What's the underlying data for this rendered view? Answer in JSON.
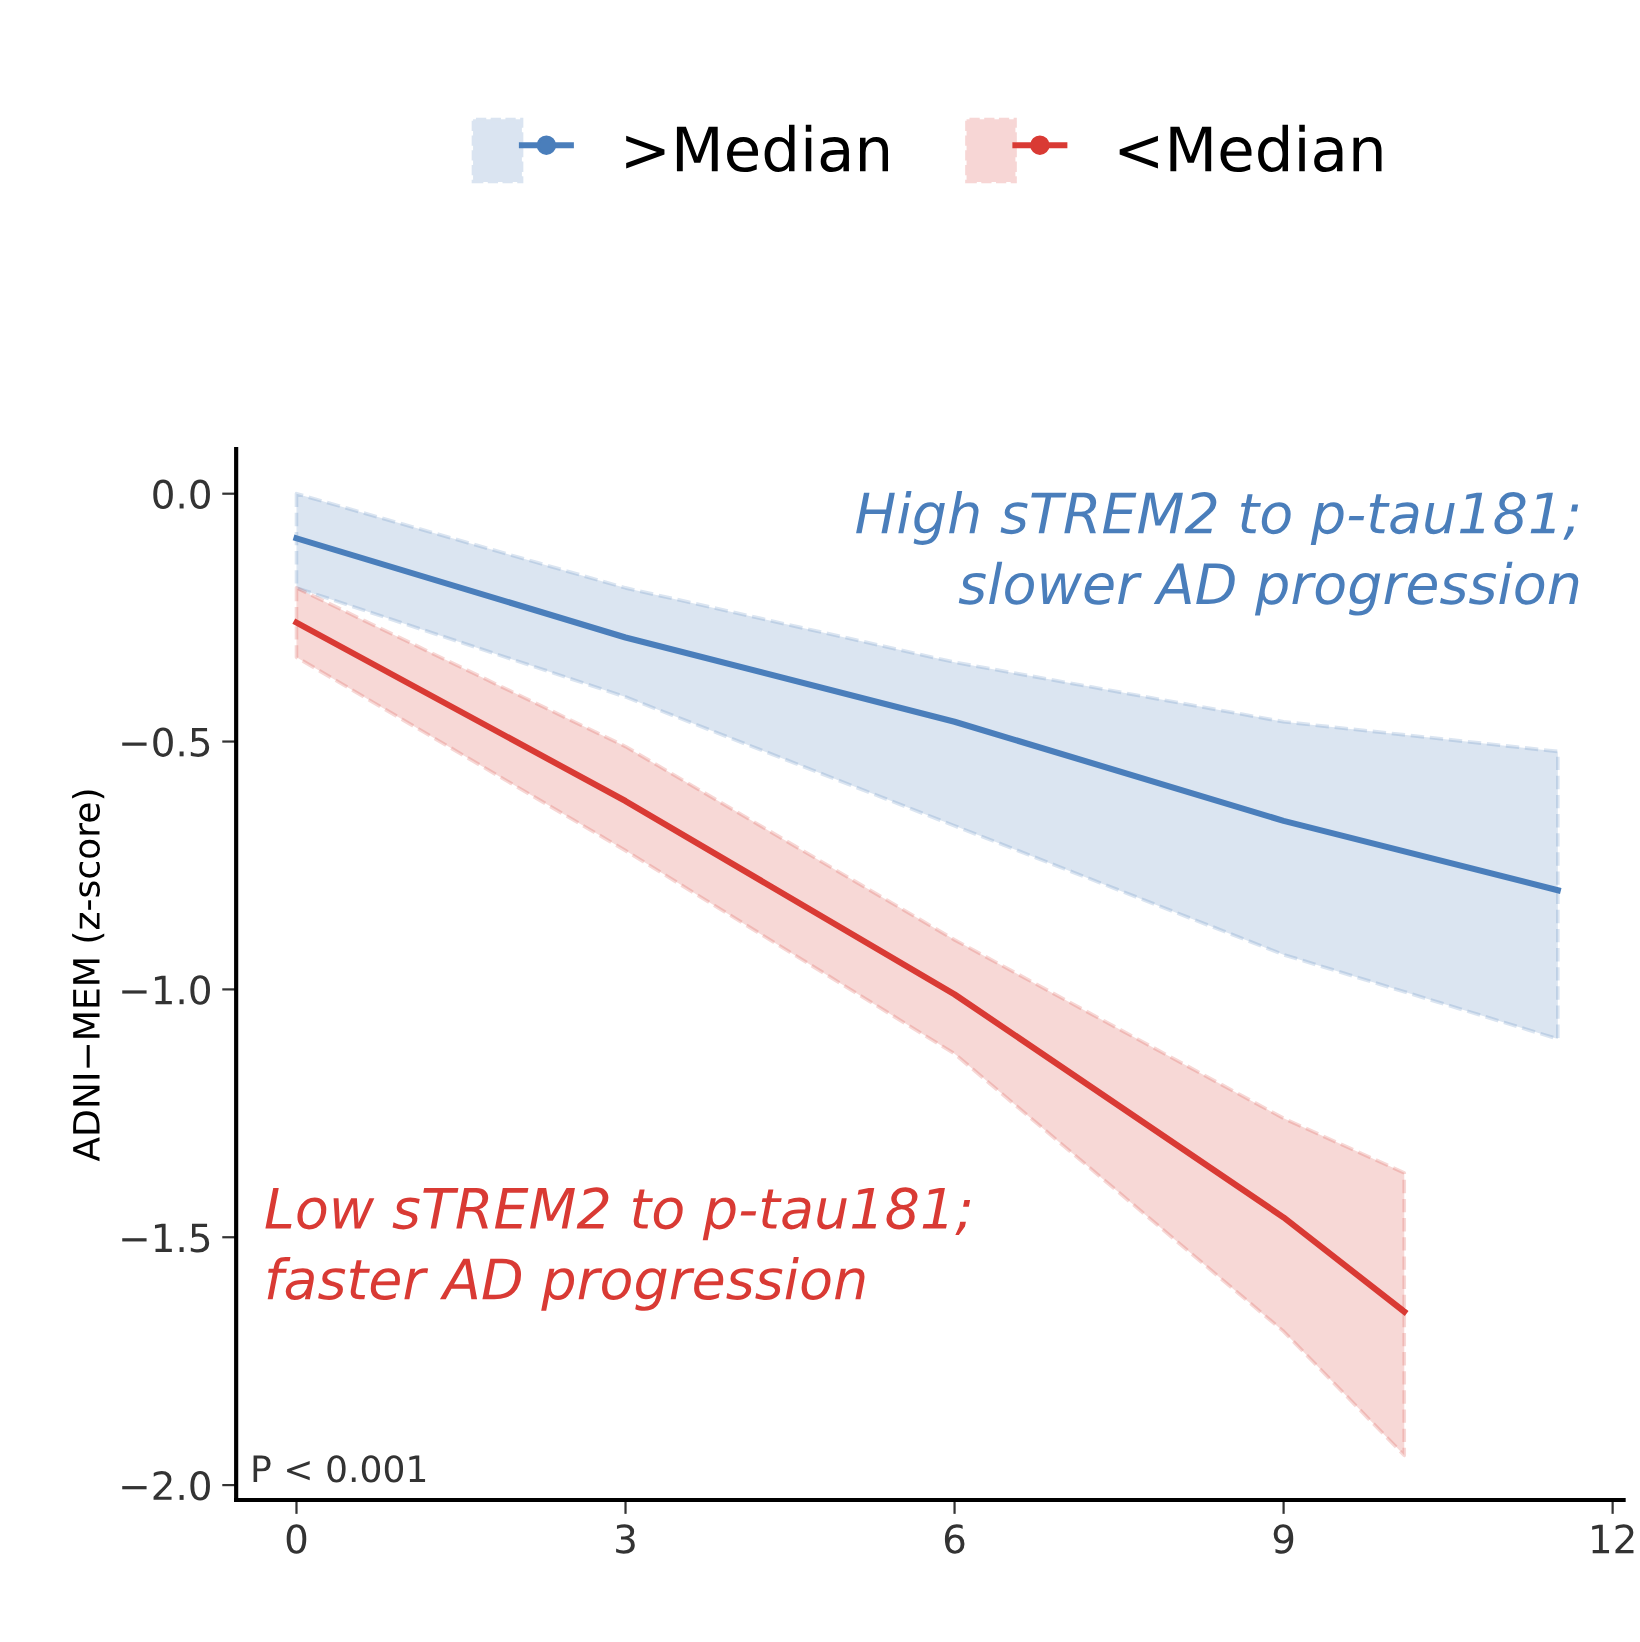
{
  "chart_data": {
    "type": "line",
    "ylabel": "ADNI−MEM (z-score)",
    "xlim": [
      -0.55,
      12.1
    ],
    "ylim": [
      -2.03,
      0.09
    ],
    "xticks": [
      0,
      3,
      6,
      9,
      12
    ],
    "yticks": [
      {
        "value": 0.0,
        "label": "0.0"
      },
      {
        "value": -0.5,
        "label": "−0.5"
      },
      {
        "value": -1.0,
        "label": "−1.0"
      },
      {
        "value": -1.5,
        "label": "−1.5"
      },
      {
        "value": -2.0,
        "label": "−2.0"
      }
    ],
    "series": [
      {
        "name": ">Median",
        "color": "#4a7ebb",
        "x": [
          0,
          3,
          6,
          9,
          11.5
        ],
        "values": [
          -0.09,
          -0.29,
          -0.46,
          -0.66,
          -0.8
        ],
        "lower": [
          -0.19,
          -0.41,
          -0.67,
          -0.93,
          -1.1
        ],
        "upper": [
          0.0,
          -0.19,
          -0.34,
          -0.46,
          -0.52
        ]
      },
      {
        "name": "<Median",
        "color": "#d93a34",
        "x": [
          0,
          3,
          6,
          9,
          10.1
        ],
        "values": [
          -0.26,
          -0.62,
          -1.01,
          -1.46,
          -1.65
        ],
        "lower": [
          -0.33,
          -0.72,
          -1.13,
          -1.69,
          -1.94
        ],
        "upper": [
          -0.19,
          -0.51,
          -0.9,
          -1.26,
          -1.37
        ]
      }
    ],
    "annotations": [
      "High sTREM2 to p-tau181;\nslower AD progression",
      "Low sTREM2 to p-tau181;\nfaster AD progression",
      "P < 0.001"
    ],
    "legend": "top",
    "grid": false,
    "marker": "none",
    "line_style": "solid"
  }
}
